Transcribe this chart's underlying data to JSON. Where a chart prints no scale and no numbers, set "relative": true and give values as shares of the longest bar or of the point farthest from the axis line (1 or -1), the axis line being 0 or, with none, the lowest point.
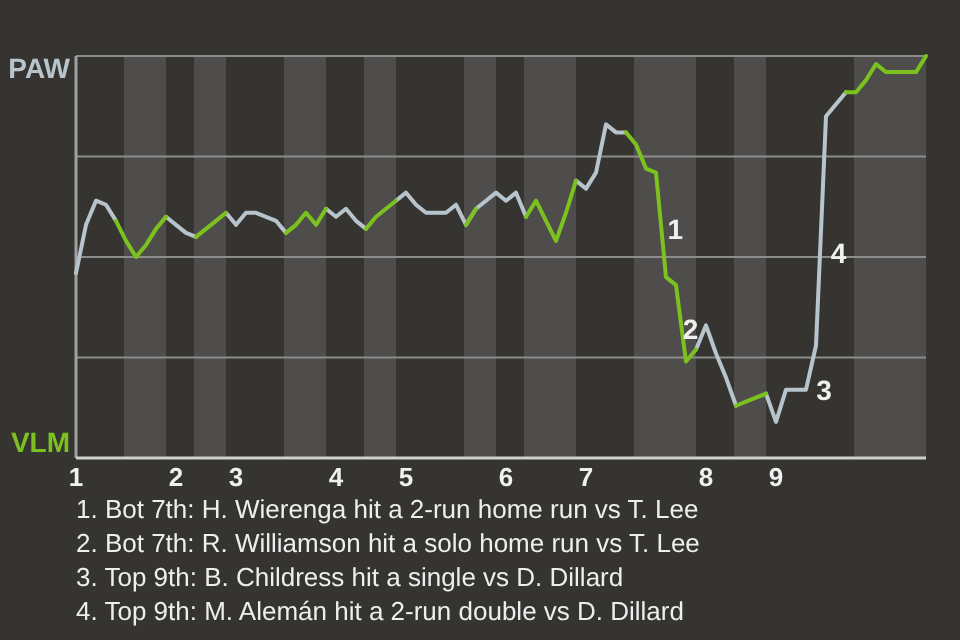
{
  "chart_data": {
    "type": "line",
    "relative": true,
    "categories": [
      "1",
      null,
      null,
      null,
      null,
      null,
      null,
      null,
      null,
      null,
      "2",
      null,
      null,
      null,
      null,
      null,
      "3",
      null,
      null,
      null,
      null,
      null,
      null,
      null,
      null,
      null,
      "4",
      null,
      null,
      null,
      null,
      null,
      null,
      "5",
      null,
      null,
      null,
      null,
      null,
      null,
      null,
      null,
      null,
      "6",
      null,
      null,
      null,
      null,
      null,
      null,
      null,
      "7",
      null,
      null,
      null,
      null,
      null,
      null,
      null,
      null,
      null,
      null,
      null,
      "8",
      null,
      null,
      null,
      null,
      null,
      null,
      "9",
      null,
      null,
      null,
      null,
      null,
      null,
      null,
      null,
      null,
      null,
      null,
      null,
      null,
      null,
      null
    ],
    "grid": "y",
    "marker": "none",
    "line_style": "solid",
    "series": [
      {
        "values": [
          0.46,
          0.58,
          0.64,
          0.63,
          0.59,
          null,
          null,
          null,
          null,
          0.6,
          0.58,
          0.56,
          0.55,
          null,
          null,
          0.61,
          0.58,
          0.61,
          0.61,
          0.6,
          0.59,
          0.56,
          null,
          null,
          null,
          0.62,
          0.6,
          0.62,
          0.59,
          0.57,
          null,
          null,
          0.64,
          0.66,
          0.63,
          0.61,
          0.61,
          0.61,
          0.63,
          0.58,
          0.62,
          0.64,
          0.66,
          0.64,
          0.66,
          0.6,
          null,
          null,
          null,
          null,
          0.69,
          0.67,
          0.71,
          0.83,
          0.81,
          0.81,
          null,
          null,
          null,
          null,
          null,
          null,
          0.27,
          0.33,
          0.26,
          0.2,
          0.13,
          null,
          null,
          0.16,
          0.09,
          0.17,
          0.17,
          0.17,
          0.28,
          0.85,
          0.88,
          0.91,
          null,
          null,
          null,
          null,
          null,
          null,
          null,
          null
        ],
        "color": "#b8c4cc"
      },
      {
        "color": "#7cc21e",
        "values": [
          null,
          null,
          null,
          null,
          0.59,
          0.54,
          0.5,
          0.53,
          0.57,
          0.6,
          null,
          null,
          0.55,
          0.57,
          0.59,
          0.61,
          null,
          null,
          null,
          null,
          null,
          0.56,
          0.58,
          0.61,
          0.58,
          0.62,
          null,
          null,
          null,
          0.57,
          0.6,
          0.62,
          0.64,
          null,
          null,
          null,
          null,
          null,
          null,
          0.58,
          0.62,
          null,
          null,
          null,
          null,
          0.6,
          0.64,
          0.59,
          0.54,
          0.61,
          0.69,
          null,
          null,
          null,
          null,
          0.81,
          0.78,
          0.72,
          0.71,
          0.45,
          0.43,
          0.24,
          0.27,
          null,
          null,
          null,
          0.13,
          0.14,
          0.15,
          0.16,
          null,
          null,
          null,
          null,
          null,
          null,
          null,
          0.91,
          0.91,
          0.94,
          0.98,
          0.96,
          0.96,
          0.96,
          0.96,
          1
        ]
      }
    ],
    "annotations": [
      "PAW",
      "VLM",
      "1",
      "2",
      "3",
      "4",
      "1. Bot 7th: H. Wierenga hit a 2-run home run vs T. Lee",
      "2. Bot 7th: R. Williamson hit a solo home run vs T. Lee",
      "3. Top 9th: B. Childress hit a single vs D. Dillard",
      "4. Top 9th: M. Alemán hit a 2-run double vs D. Dillard"
    ]
  }
}
